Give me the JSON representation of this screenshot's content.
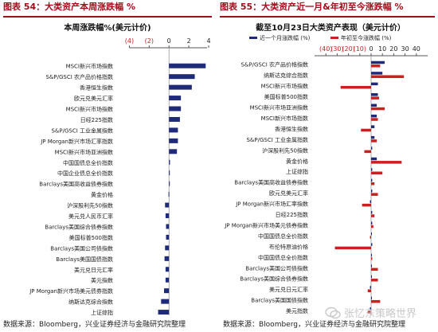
{
  "left": {
    "header": "图表 54：大类资产本周涨跌幅 %",
    "source": "数据来源：Bloomberg，兴业证券经济与金融研究院整理"
  },
  "right": {
    "header": "图表 55：大类资产近一月&年初至今涨跌幅 %",
    "source": "数据来源：Bloomberg，兴业证券经济与金融研究院整理"
  },
  "watermark": "张忆东策略世界",
  "colors": {
    "navy": "#1f2a78",
    "red": "#cc1f1f",
    "header_red": "#a30d1b",
    "axis": "#555555"
  },
  "chart_data": [
    {
      "type": "bar",
      "orientation": "horizontal",
      "title": "本周涨跌幅%(美元计价)",
      "xlim": [
        -5,
        4
      ],
      "xticks": [
        -4,
        -2,
        0,
        2,
        4
      ],
      "xtick_labels": [
        "(4)",
        "(2)",
        "0",
        "2",
        "4"
      ],
      "categories": [
        "MSCI新兴市场指数",
        "S&P/GSCI 农产品价格指数",
        "香港恒生指数",
        "欧元兑美元汇率",
        "MSCI新兴市场指数",
        "日经225指数",
        "S&P/GSCI 工业金属指数",
        "JP Morgan新兴市场汇率指数",
        "MSCI新兴市场亚洲指数",
        "中国国债总全价指数",
        "中国企业债总全价指数",
        "Barclays美国高收益债券指数",
        "黄金价格",
        "沪深股利先50指数",
        "美元兑人民币汇率",
        "Barclays美国综合债券指数",
        "美国标普500指数",
        "Barclays美国公司债指数",
        "Barclays美国国债指数",
        "美元兑日元汇率",
        "美元指数",
        "JP Morgan新兴市场美元债券指数",
        "纳斯达克综合指数",
        "上证综指",
        "布伦特原油价格"
      ],
      "values": [
        3.7,
        2.6,
        2.3,
        1.2,
        1.2,
        1.1,
        0.9,
        0.9,
        0.8,
        0.1,
        0.05,
        0.02,
        -0.05,
        -0.4,
        -0.35,
        -0.3,
        -0.3,
        -0.4,
        -0.45,
        -0.35,
        -0.35,
        -0.5,
        -0.8,
        -1.1,
        -2.0
      ]
    },
    {
      "type": "bar",
      "orientation": "horizontal",
      "title": "截至10月23日大类资产表现（美元计价）",
      "xlim": [
        -50,
        50
      ],
      "xticks": [
        -40,
        -30,
        -20,
        -10,
        0,
        10,
        20,
        30,
        40
      ],
      "xtick_labels": [
        "(40)",
        "(30)",
        "(20)",
        "(10)",
        "0",
        "10",
        "20",
        "30",
        "40"
      ],
      "legend": "top",
      "categories": [
        "S&P/GSCI 农产品价格指数",
        "纳斯达克综合指数",
        "MSCI新兴市场指数",
        "美国标普500指数",
        "MSCI新兴市场亚洲指数",
        "MSCI新兴市场指数",
        "香港恒生指数",
        "S&P/GSCI 工业金属指数",
        "沪深股利先50指数",
        "黄金价格",
        "上证综指",
        "Barclays美国高收益债券指数",
        "欧元兑美元汇率",
        "JP Morgan新兴市场汇率指数",
        "日经225指数",
        "JP Morgan新兴市场美元债券指数",
        "中国国债总全价指数",
        "布伦特原油价格",
        "中国国债总全价指数",
        "Barclays美国公司债指数",
        "Barclays美国综合债券指数",
        "美元兑日元汇率",
        "Barclays美国国债指数",
        "美元指数",
        "美元兑人民币汇率"
      ],
      "series": [
        {
          "name": "近一个月涨跌幅 (%)",
          "values": [
            12,
            10,
            6,
            6,
            5,
            5,
            3,
            3,
            1,
            5,
            1,
            1,
            1,
            -1,
            1,
            1,
            0.5,
            1,
            0.5,
            0.5,
            0.5,
            -1,
            0.5,
            -1,
            -1
          ]
        },
        {
          "name": "年初至今涨跌幅 (%)",
          "values": [
            8,
            29,
            -27,
            7,
            12,
            6,
            -9,
            5,
            -6,
            27,
            10,
            3,
            6,
            -8,
            3,
            2,
            -1,
            -32,
            1,
            6,
            6,
            -3,
            8,
            -3,
            -4
          ]
        }
      ]
    }
  ]
}
